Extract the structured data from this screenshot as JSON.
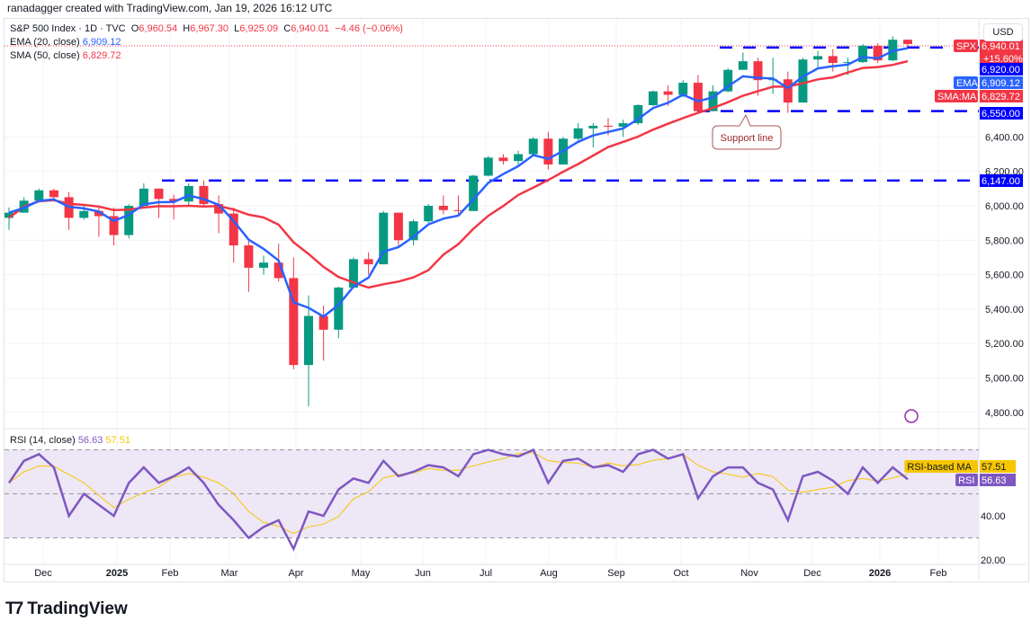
{
  "credit": "ranadagger created with TradingView.com, Jan 19, 2026 16:12 UTC",
  "legend": {
    "symbol": "S&P 500 Index · 1D · TVC",
    "open_label": "O",
    "open": "6,960.54",
    "high_label": "H",
    "high": "6,967.30",
    "low_label": "L",
    "low": "6,925.09",
    "close_label": "C",
    "close": "6,940.01",
    "change": "−4.46 (−0.06%)",
    "ema_label": "EMA (20, close)",
    "ema_value": "6,909.12",
    "sma_label": "SMA (50, close)",
    "sma_value": "6,829.72",
    "rsi_label": "RSI (14, close)",
    "rsi_value": "56.63",
    "rsi_ma_value": "57.51"
  },
  "currency": "USD",
  "logo_text": "TradingView",
  "colors": {
    "up": "#089981",
    "down": "#f23645",
    "ema": "#2962ff",
    "sma": "#f23645",
    "level": "#0000ff",
    "rsi": "#7e57c2",
    "rsi_ma": "#f7c600",
    "rsi_band": "#ede7f6"
  },
  "price_axis": {
    "ticks": [
      "6,400.00",
      "6,200.00",
      "6,000.00",
      "5,800.00",
      "5,600.00",
      "5,400.00",
      "5,200.00",
      "5,000.00",
      "4,800.00"
    ],
    "tags": [
      {
        "label": "SPX",
        "value": "6,940.01",
        "sub": "+15.60%",
        "color": "#f23645"
      },
      {
        "label": "",
        "value": "6,920.00",
        "color": "#0000ff"
      },
      {
        "label": "EMA",
        "value": "6,909.12",
        "color": "#2962ff"
      },
      {
        "label": "SMA:MA",
        "value": "6,829.72",
        "color": "#f23645"
      },
      {
        "label": "",
        "value": "6,550.00",
        "color": "#0000ff"
      },
      {
        "label": "",
        "value": "6,147.00",
        "color": "#0000ff"
      }
    ]
  },
  "rsi_axis": {
    "ticks": [
      "40.00",
      "20.00"
    ],
    "tags": [
      {
        "label": "RSI-based MA",
        "value": "57.51",
        "color": "#f7c600"
      },
      {
        "label": "RSI",
        "value": "56.63",
        "color": "#7e57c2"
      }
    ]
  },
  "time_axis": [
    "Dec",
    "2025",
    "Feb",
    "Mar",
    "Apr",
    "May",
    "Jun",
    "Jul",
    "Aug",
    "Sep",
    "Oct",
    "Nov",
    "Dec",
    "2026",
    "Feb"
  ],
  "annotation": "Support line",
  "chart_data": {
    "type": "candlestick",
    "interval": "weekly approximation of daily chart",
    "ylim": [
      4750,
      7000
    ],
    "levels": [
      6920,
      6550,
      6147
    ],
    "weeks": [
      "2024-11-18",
      "2024-11-25",
      "2024-12-02",
      "2024-12-09",
      "2024-12-16",
      "2024-12-23",
      "2024-12-30",
      "2025-01-06",
      "2025-01-13",
      "2025-01-20",
      "2025-01-27",
      "2025-02-03",
      "2025-02-10",
      "2025-02-17",
      "2025-02-24",
      "2025-03-03",
      "2025-03-10",
      "2025-03-17",
      "2025-03-24",
      "2025-03-31",
      "2025-04-07",
      "2025-04-14",
      "2025-04-21",
      "2025-04-28",
      "2025-05-05",
      "2025-05-12",
      "2025-05-19",
      "2025-05-26",
      "2025-06-02",
      "2025-06-09",
      "2025-06-16",
      "2025-06-23",
      "2025-06-30",
      "2025-07-07",
      "2025-07-14",
      "2025-07-21",
      "2025-07-28",
      "2025-08-04",
      "2025-08-11",
      "2025-08-18",
      "2025-08-25",
      "2025-09-01",
      "2025-09-08",
      "2025-09-15",
      "2025-09-22",
      "2025-09-29",
      "2025-10-06",
      "2025-10-13",
      "2025-10-20",
      "2025-10-27",
      "2025-11-03",
      "2025-11-10",
      "2025-11-17",
      "2025-11-24",
      "2025-12-01",
      "2025-12-08",
      "2025-12-15",
      "2025-12-22",
      "2025-12-29",
      "2026-01-05",
      "2026-01-12"
    ],
    "close": [
      5960,
      6030,
      6090,
      6050,
      5930,
      5970,
      5940,
      5830,
      6000,
      6100,
      6040,
      6025,
      6115,
      6010,
      5955,
      5770,
      5640,
      5670,
      5580,
      5075,
      5360,
      5280,
      5525,
      5690,
      5660,
      5960,
      5800,
      5910,
      6000,
      5975,
      5970,
      6175,
      6280,
      6260,
      6300,
      6390,
      6240,
      6390,
      6450,
      6465,
      6460,
      6480,
      6585,
      6665,
      6645,
      6715,
      6550,
      6665,
      6790,
      6840,
      6730,
      6735,
      6600,
      6850,
      6870,
      6830,
      6835,
      6930,
      6845,
      6965,
      6940
    ],
    "high": [
      5990,
      6050,
      6100,
      6100,
      6080,
      6000,
      5990,
      5990,
      6010,
      6130,
      6100,
      6065,
      6130,
      6147,
      6060,
      5990,
      5810,
      5710,
      5780,
      5700,
      5480,
      5420,
      5530,
      5700,
      5730,
      5970,
      5960,
      5920,
      6010,
      6060,
      6060,
      6180,
      6290,
      6300,
      6320,
      6400,
      6430,
      6400,
      6480,
      6480,
      6510,
      6500,
      6590,
      6670,
      6700,
      6730,
      6760,
      6700,
      6800,
      6890,
      6860,
      6860,
      6780,
      6860,
      6900,
      6910,
      6860,
      6940,
      6945,
      6985,
      6967
    ],
    "low": [
      5860,
      5960,
      6020,
      6030,
      5860,
      5920,
      5820,
      5770,
      5810,
      5990,
      5930,
      5920,
      6000,
      5990,
      5840,
      5670,
      5500,
      5600,
      5560,
      5050,
      4835,
      5100,
      5230,
      5520,
      5600,
      5660,
      5760,
      5770,
      5900,
      5950,
      5940,
      5970,
      6170,
      6240,
      6230,
      6290,
      6210,
      6240,
      6380,
      6340,
      6410,
      6400,
      6470,
      6580,
      6580,
      6630,
      6540,
      6550,
      6660,
      6790,
      6640,
      6650,
      6540,
      6600,
      6800,
      6780,
      6760,
      6830,
      6830,
      6840,
      6925
    ],
    "rsi": [
      55,
      65,
      68,
      62,
      40,
      50,
      45,
      40,
      55,
      62,
      55,
      58,
      62,
      55,
      45,
      38,
      30,
      35,
      38,
      25,
      42,
      40,
      52,
      57,
      55,
      65,
      58,
      60,
      63,
      62,
      58,
      68,
      70,
      68,
      67,
      70,
      55,
      65,
      66,
      62,
      63,
      60,
      68,
      70,
      66,
      68,
      48,
      58,
      62,
      62,
      55,
      52,
      38,
      58,
      60,
      56,
      50,
      62,
      55,
      62,
      56.63
    ],
    "rsi_ylim": [
      15,
      85
    ],
    "rsi_bands": [
      70,
      30
    ]
  }
}
